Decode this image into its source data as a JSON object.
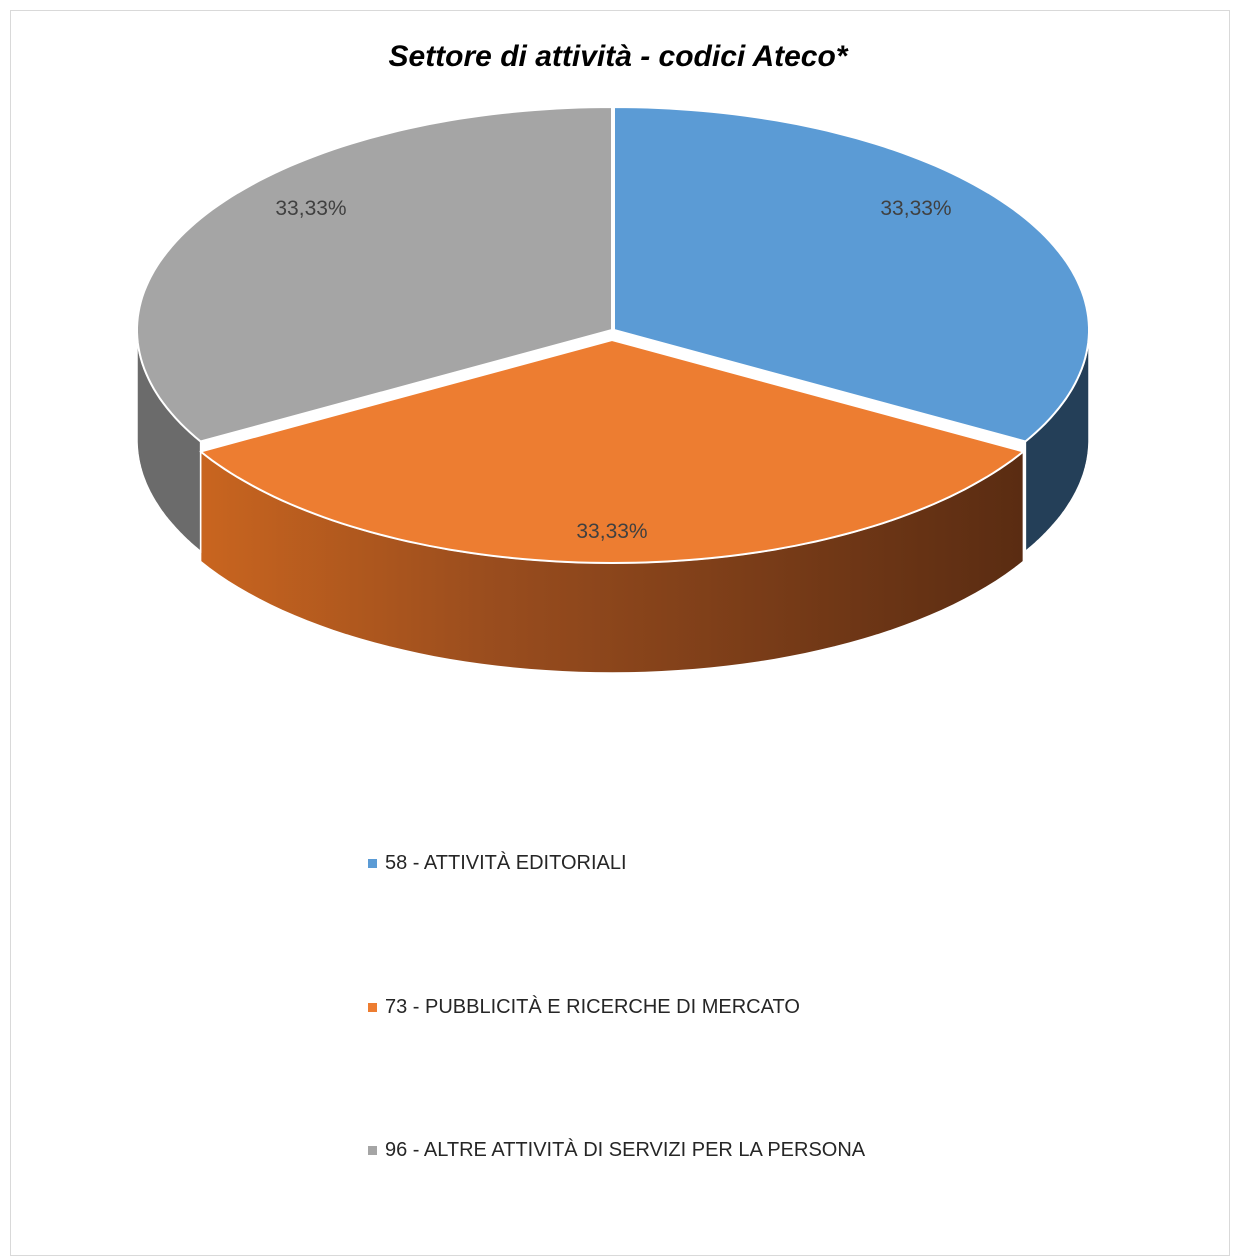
{
  "chart_data": {
    "type": "pie",
    "title": "Settore di attività - codici Ateco*",
    "style": "3d-exploded",
    "legend_position": "bottom",
    "slices": [
      {
        "name": "58 - ATTIVITÀ EDITORIALI",
        "value": 33.33,
        "label": "33,33%",
        "color": "#5B9BD5",
        "side_color": "#243F58"
      },
      {
        "name": "73 - PUBBLICITÀ E RICERCHE DI MERCATO",
        "value": 33.33,
        "label": "33,33%",
        "color": "#ED7D31",
        "side_color": "#7A3C12"
      },
      {
        "name": "96 - ALTRE ATTIVITÀ DI SERVIZI PER LA PERSONA",
        "value": 33.33,
        "label": "33,33%",
        "color": "#A5A5A5",
        "side_color": "#6B6B6B"
      }
    ]
  }
}
